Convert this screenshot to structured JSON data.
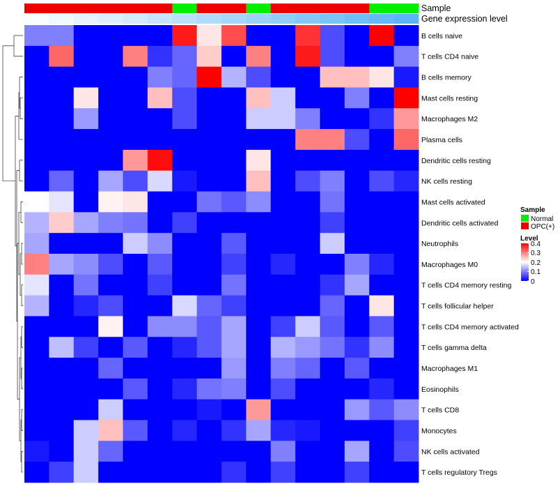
{
  "chart_data": {
    "type": "heatmap",
    "annotations": {
      "sample_label": "Sample",
      "gene_label": "Gene expression level",
      "sample_track": [
        "OPC(+)",
        "OPC(+)",
        "OPC(+)",
        "OPC(+)",
        "OPC(+)",
        "OPC(+)",
        "Normal",
        "OPC(+)",
        "OPC(+)",
        "Normal",
        "OPC(+)",
        "OPC(+)",
        "OPC(+)",
        "OPC(+)",
        "Normal",
        "Normal"
      ],
      "gene_track": [
        0.02,
        0.06,
        0.1,
        0.13,
        0.17,
        0.21,
        0.25,
        0.29,
        0.33,
        0.37,
        0.41,
        0.45,
        0.49,
        0.53,
        0.57,
        0.61
      ]
    },
    "sample_colors": {
      "Normal": "#00ee00",
      "OPC(+)": "#ee0000"
    },
    "gene_track_colors": {
      "low": "#ffffff",
      "high": "#5ab4f5"
    },
    "rows": [
      "B cells naive",
      "T cells CD4 naive",
      "B cells memory",
      "Mast cells resting",
      "Macrophages M2",
      "Plasma cells",
      "Dendritic cells resting",
      "NK cells resting",
      "Mast cells activated",
      "Dendritic cells activated",
      "Neutrophils",
      "Macrophages M0",
      "T cells CD4 memory resting",
      "T cells follicular helper",
      "T cells CD4 memory activated",
      "T cells gamma delta",
      "Macrophages M1",
      "Eosinophils",
      "T cells CD8",
      "Monocytes",
      "NK cells activated",
      "T cells regulatory  Tregs"
    ],
    "values": [
      [
        0.1,
        0.1,
        0,
        0,
        0,
        0,
        0.38,
        0.22,
        0.34,
        0,
        0,
        0.36,
        0.06,
        0,
        0.4,
        0
      ],
      [
        0,
        0.32,
        0,
        0,
        0.3,
        0.04,
        0.08,
        0.24,
        0,
        0.3,
        0,
        0.38,
        0.06,
        0,
        0,
        0.1
      ],
      [
        0,
        0,
        0,
        0,
        0,
        0.1,
        0.08,
        0.4,
        0.14,
        0.06,
        0,
        0,
        0.25,
        0.25,
        0.22,
        0.02
      ],
      [
        0,
        0,
        0.22,
        0,
        0,
        0.25,
        0.06,
        0,
        0,
        0.25,
        0.16,
        0,
        0,
        0.1,
        0,
        0.4
      ],
      [
        0,
        0,
        0.12,
        0,
        0,
        0,
        0.06,
        0,
        0,
        0.16,
        0.16,
        0.1,
        0,
        0,
        0.04,
        0.28
      ],
      [
        0,
        0,
        0,
        0,
        0,
        0,
        0,
        0,
        0,
        0,
        0,
        0.3,
        0.3,
        0.06,
        0,
        0.32
      ],
      [
        0,
        0,
        0,
        0,
        0.28,
        0.39,
        0,
        0,
        0,
        0.22,
        0,
        0,
        0,
        0,
        0,
        0
      ],
      [
        0,
        0.08,
        0,
        0.13,
        0.06,
        0.17,
        0.02,
        0,
        0,
        0.25,
        0,
        0.06,
        0.1,
        0,
        0.06,
        0.03
      ],
      [
        0.2,
        0.18,
        0,
        0.21,
        0.22,
        0,
        0,
        0.09,
        0.07,
        0.11,
        0,
        0,
        0.09,
        0,
        0,
        0
      ],
      [
        0.14,
        0.24,
        0.13,
        0.1,
        0.09,
        0,
        0.05,
        0,
        0,
        0,
        0,
        0,
        0.05,
        0,
        0,
        0
      ],
      [
        0.13,
        0,
        0,
        0,
        0.16,
        0.11,
        0,
        0,
        0.07,
        0,
        0,
        0,
        0.16,
        0,
        0,
        0
      ],
      [
        0.3,
        0.13,
        0.11,
        0.06,
        0,
        0.07,
        0,
        0,
        0.05,
        0,
        0.03,
        0,
        0,
        0.1,
        0.03,
        0
      ],
      [
        0.18,
        0,
        0.09,
        0,
        0,
        0.05,
        0,
        0,
        0.09,
        0,
        0,
        0,
        0.04,
        0.13,
        0,
        0
      ],
      [
        0.14,
        0,
        0.03,
        0.06,
        0,
        0,
        0.17,
        0.08,
        0.05,
        0,
        0,
        0,
        0.08,
        0,
        0.22,
        0
      ],
      [
        0,
        0,
        0,
        0.21,
        0,
        0.11,
        0.11,
        0.07,
        0.13,
        0,
        0.05,
        0.16,
        0.07,
        0,
        0.07,
        0
      ],
      [
        0,
        0.15,
        0.05,
        0,
        0.07,
        0,
        0.03,
        0.07,
        0.13,
        0,
        0.14,
        0.12,
        0.09,
        0.04,
        0.11,
        0
      ],
      [
        0,
        0,
        0,
        0.08,
        0,
        0,
        0,
        0,
        0.12,
        0,
        0.1,
        0.08,
        0,
        0.07,
        0,
        0
      ],
      [
        0,
        0,
        0,
        0,
        0.07,
        0,
        0.03,
        0.09,
        0.1,
        0,
        0.06,
        0,
        0,
        0,
        0.03,
        0
      ],
      [
        0,
        0,
        0,
        0.16,
        0,
        0,
        0,
        0.02,
        0,
        0.28,
        0,
        0,
        0,
        0.12,
        0.07,
        0.11
      ],
      [
        0,
        0,
        0.16,
        0.25,
        0.07,
        0,
        0.03,
        0,
        0.04,
        0.13,
        0.03,
        0.02,
        0,
        0,
        0,
        0.05
      ],
      [
        0.02,
        0,
        0.16,
        0.08,
        0,
        0,
        0,
        0,
        0,
        0,
        0.1,
        0,
        0,
        0.13,
        0,
        0.06
      ],
      [
        0,
        0.05,
        0.16,
        0,
        0,
        0,
        0,
        0,
        0.04,
        0,
        0.05,
        0,
        0,
        0.05,
        0,
        0
      ]
    ],
    "color_scale": {
      "min": 0,
      "max": 0.4,
      "low": "#0000ff",
      "mid": "#ffffff",
      "high": "#ff0000",
      "midpoint": 0.2
    },
    "legend": {
      "sample_title": "Sample",
      "sample_entries": [
        "Normal",
        "OPC(+)"
      ],
      "level_title": "Level",
      "level_ticks": [
        "0.4",
        "0.3",
        "0.2",
        "0.1",
        "0"
      ]
    }
  }
}
